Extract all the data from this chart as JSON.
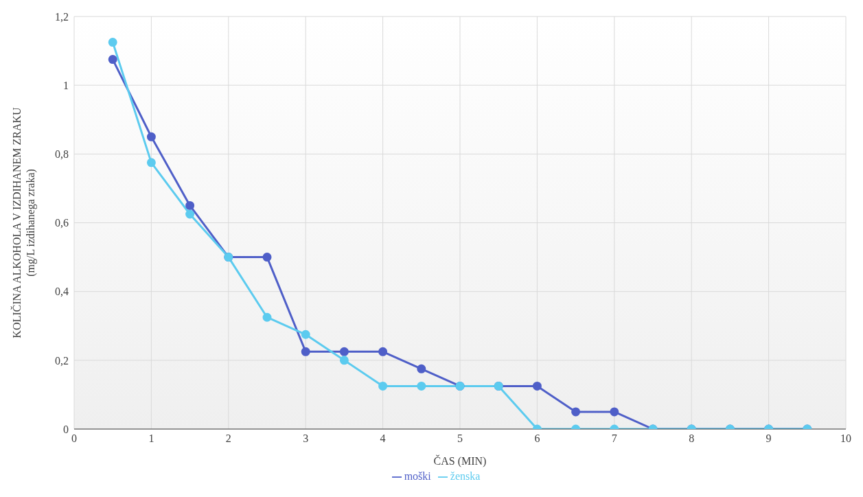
{
  "chart_data": {
    "type": "line",
    "xlabel": "ČAS (MIN)",
    "ylabel": "KOLIČINA ALKOHOLA V IZDIHANEM ZRAKU\n(mg/L izdihanega zraka)",
    "x": [
      0.5,
      1,
      1.5,
      2,
      2.5,
      3,
      3.5,
      4,
      4.5,
      5,
      5.5,
      6,
      6.5,
      7,
      7.5,
      8,
      8.5,
      9,
      9.5
    ],
    "series": [
      {
        "name": "moški",
        "color": "#4f5fc8",
        "values": [
          1.075,
          0.85,
          0.65,
          0.5,
          0.5,
          0.225,
          0.225,
          0.225,
          0.175,
          0.125,
          0.125,
          0.125,
          0.05,
          0.05,
          0,
          0,
          0,
          0,
          0
        ]
      },
      {
        "name": "ženska",
        "color": "#5ccbef",
        "values": [
          1.125,
          0.775,
          0.625,
          0.5,
          0.325,
          0.275,
          0.2,
          0.125,
          0.125,
          0.125,
          0.125,
          0,
          0,
          0,
          0,
          0,
          0,
          0,
          0
        ]
      }
    ],
    "xlim": [
      0,
      10
    ],
    "xticks": [
      0,
      1,
      2,
      3,
      4,
      5,
      6,
      7,
      8,
      9,
      10
    ],
    "ylim": [
      0,
      1.2
    ],
    "yticks": [
      0,
      {
        "value": 0.2,
        "label": "0,2"
      },
      {
        "value": 0.4,
        "label": "0,4"
      },
      {
        "value": 0.6,
        "label": "0,6"
      },
      {
        "value": 0.8,
        "label": "0,8"
      },
      1,
      {
        "value": 1.2,
        "label": "1,2"
      }
    ],
    "grid": true,
    "legend": "bottom",
    "marker": "circle",
    "line_style": "solid"
  }
}
